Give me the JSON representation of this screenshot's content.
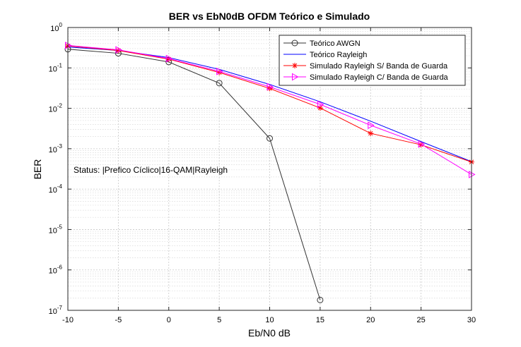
{
  "chart_data": {
    "type": "line",
    "title": "BER vs EbN0dB OFDM Teórico e Simulado",
    "xlabel": "Eb/N0 dB",
    "ylabel": "BER",
    "xlim": [
      -10,
      30
    ],
    "ylim": [
      1e-07,
      1
    ],
    "yscale": "log",
    "grid": true,
    "legend_position": "top-right",
    "x_ticks": [
      "-10",
      "-5",
      "0",
      "5",
      "10",
      "15",
      "20",
      "25",
      "30"
    ],
    "y_ticks": [
      {
        "base": "10",
        "exp": "-7"
      },
      {
        "base": "10",
        "exp": "-6"
      },
      {
        "base": "10",
        "exp": "-5"
      },
      {
        "base": "10",
        "exp": "-4"
      },
      {
        "base": "10",
        "exp": "-3"
      },
      {
        "base": "10",
        "exp": "-2"
      },
      {
        "base": "10",
        "exp": "-1"
      },
      {
        "base": "10",
        "exp": "0"
      }
    ],
    "annotation": "Status: |Prefico Cíclico|16-QAM|Rayleigh",
    "series": [
      {
        "name": "Teórico AWGN",
        "color": "#333333",
        "marker": "circle",
        "x": [
          -10,
          -5,
          0,
          5,
          10,
          15
        ],
        "y": [
          0.29,
          0.23,
          0.14,
          0.042,
          0.0018,
          1.8e-07
        ]
      },
      {
        "name": "Teórico Rayleigh",
        "color": "#0000ff",
        "marker": "none",
        "x": [
          -10,
          -5,
          0,
          5,
          10,
          15,
          20,
          25,
          30
        ],
        "y": [
          0.33,
          0.27,
          0.18,
          0.092,
          0.039,
          0.0145,
          0.0048,
          0.0015,
          0.00048
        ]
      },
      {
        "name": "Simulado Rayleigh S/ Banda de Guarda",
        "color": "#ff0000",
        "marker": "asterisk",
        "x": [
          -10,
          -5,
          0,
          5,
          10,
          15,
          20,
          25,
          30
        ],
        "y": [
          0.35,
          0.27,
          0.165,
          0.077,
          0.031,
          0.0102,
          0.0024,
          0.00125,
          0.00047
        ]
      },
      {
        "name": "Simulado Rayleigh C/ Banda de Guarda",
        "color": "#ff00ff",
        "marker": "triangle-right",
        "x": [
          -10,
          -5,
          0,
          5,
          10,
          15,
          20,
          25,
          30
        ],
        "y": [
          0.36,
          0.28,
          0.17,
          0.082,
          0.034,
          0.0125,
          0.0038,
          0.0013,
          0.00023
        ]
      }
    ]
  }
}
